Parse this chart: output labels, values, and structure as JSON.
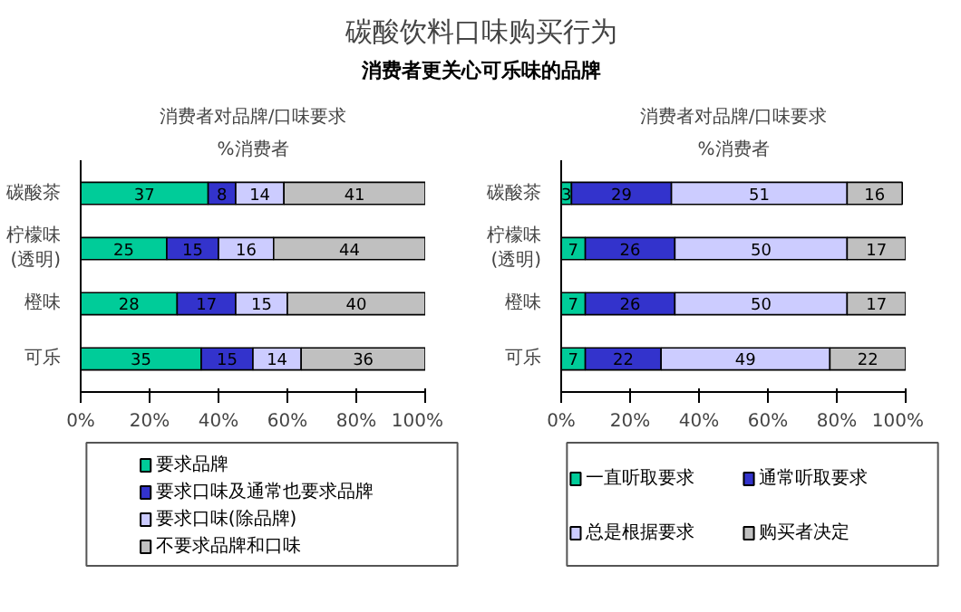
{
  "chart_data": [
    {
      "type": "other",
      "title": "碳酸饮料口味购买行为",
      "subtitle": "消费者更关心可乐味的品牌"
    },
    {
      "type": "bar",
      "orientation": "horizontal",
      "stacked": true,
      "title": "消费者对品牌/口味要求",
      "subtitle": "%消费者",
      "categories": [
        "碳酸茶",
        "柠檬味\n(透明)",
        "橙味",
        "可乐"
      ],
      "series": [
        {
          "name": "要求品牌",
          "color": "#00cc99",
          "values": [
            37,
            25,
            28,
            35
          ]
        },
        {
          "name": "要求口味及通常也要求品牌",
          "color": "#3333cc",
          "values": [
            8,
            15,
            17,
            15
          ]
        },
        {
          "name": "要求口味(除品牌)",
          "color": "#ccccff",
          "values": [
            14,
            16,
            15,
            14
          ]
        },
        {
          "name": "不要求品牌和口味",
          "color": "#c0c0c0",
          "values": [
            41,
            44,
            40,
            36
          ]
        }
      ],
      "data_labels": true,
      "xlim": [
        0,
        100
      ],
      "xticks": [
        {
          "value": 0,
          "label": "0%"
        },
        {
          "value": 20,
          "label": "20%"
        },
        {
          "value": 40,
          "label": "40%"
        },
        {
          "value": 60,
          "label": "60%"
        },
        {
          "value": 80,
          "label": "80%"
        },
        {
          "value": 100,
          "label": "100%"
        }
      ],
      "grid": false,
      "legend": "bottom"
    },
    {
      "type": "bar",
      "orientation": "horizontal",
      "stacked": true,
      "title": "消费者对品牌/口味要求",
      "subtitle": "%消费者",
      "categories": [
        "碳酸茶",
        "柠檬味\n(透明)",
        "橙味",
        "可乐"
      ],
      "series": [
        {
          "name": "一直听取要求",
          "color": "#00cc99",
          "values": [
            3,
            7,
            7,
            7
          ]
        },
        {
          "name": "通常听取要求",
          "color": "#3333cc",
          "values": [
            29,
            26,
            26,
            22
          ]
        },
        {
          "name": "总是根据要求",
          "color": "#ccccff",
          "values": [
            51,
            50,
            50,
            49
          ]
        },
        {
          "name": "购买者决定",
          "color": "#c0c0c0",
          "values": [
            16,
            17,
            17,
            22
          ]
        }
      ],
      "data_labels": true,
      "xlim": [
        0,
        100
      ],
      "xticks": [
        {
          "value": 0,
          "label": "0%"
        },
        {
          "value": 20,
          "label": "20%"
        },
        {
          "value": 40,
          "label": "40%"
        },
        {
          "value": 60,
          "label": "60%"
        },
        {
          "value": 80,
          "label": "80%"
        },
        {
          "value": 100,
          "label": "100%"
        }
      ],
      "grid": false,
      "legend": "bottom"
    }
  ]
}
